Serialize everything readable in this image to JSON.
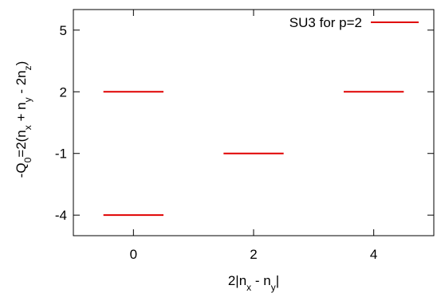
{
  "chart_data": {
    "type": "scatter",
    "marker": "horizontal-segment",
    "segment_half_width": 0.5,
    "series": [
      {
        "name": "SU3 for p=2",
        "color": "#e00000",
        "points": [
          {
            "x": 0,
            "y": 2
          },
          {
            "x": 0,
            "y": -4
          },
          {
            "x": 2,
            "y": -1
          },
          {
            "x": 4,
            "y": 2
          }
        ]
      }
    ],
    "xlim": [
      -1,
      5
    ],
    "ylim": [
      -5,
      6
    ],
    "xticks": [
      0,
      2,
      4
    ],
    "yticks": [
      -4,
      -1,
      2,
      5
    ],
    "xtick_labels": [
      "0",
      "2",
      "4"
    ],
    "ytick_labels": [
      "-4",
      "-1",
      "2",
      "5"
    ],
    "legend_position": "top-right",
    "grid": false
  }
}
